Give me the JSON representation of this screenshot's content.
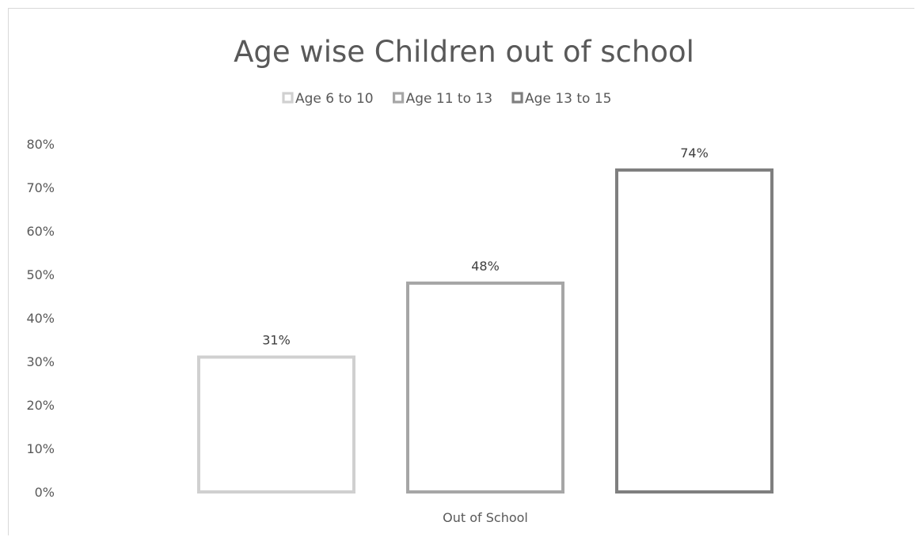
{
  "chart_data": {
    "type": "bar",
    "title": "Age wise Children out of school",
    "categories": [
      "Out of School"
    ],
    "series": [
      {
        "name": "Age 6 to 10",
        "values": [
          31
        ],
        "label": "31%",
        "color": "#d0d0d0"
      },
      {
        "name": "Age 11 to 13",
        "values": [
          48
        ],
        "label": "48%",
        "color": "#a6a6a6"
      },
      {
        "name": "Age 13 to 15",
        "values": [
          74
        ],
        "label": "74%",
        "color": "#7f7f7f"
      }
    ],
    "ylim": [
      0,
      80
    ],
    "yticks": [
      "0%",
      "10%",
      "20%",
      "30%",
      "40%",
      "50%",
      "60%",
      "70%",
      "80%"
    ],
    "xlabel": "",
    "ylabel": "",
    "legend_position": "top",
    "grid": false,
    "bar_style": "outline"
  }
}
